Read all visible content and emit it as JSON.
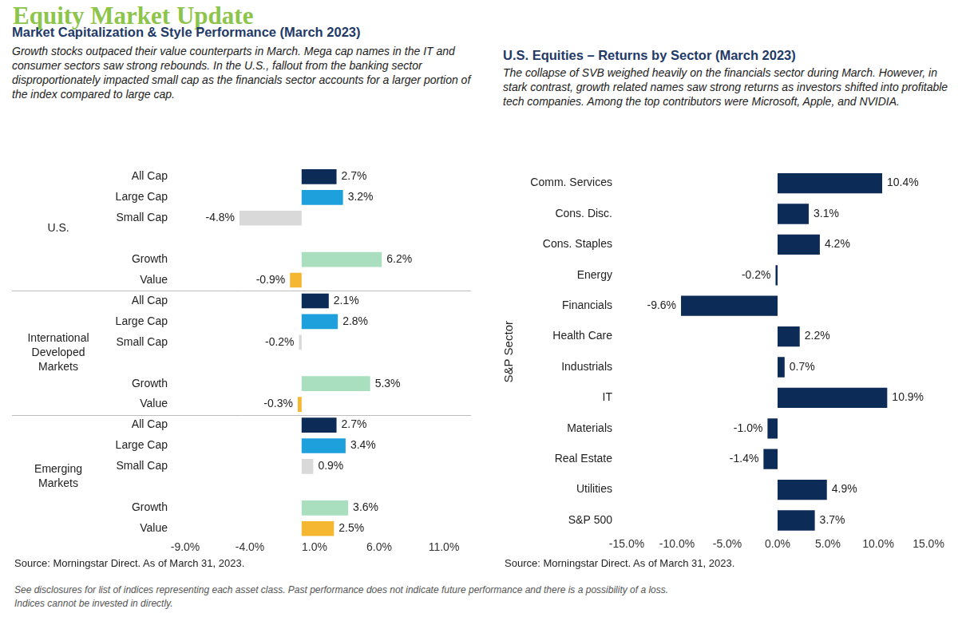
{
  "header": {
    "title": "Equity Market Update"
  },
  "footer": {
    "disclaimer": [
      "See disclosures for list of indices representing each asset class. Past performance does not indicate future performance and there is a possibility of a loss.",
      "Indices cannot be invested in directly."
    ]
  },
  "chart_data": [
    {
      "type": "bar",
      "orientation": "horizontal",
      "title": "Market Capitalization & Style Performance (March 2023)",
      "subtitle": "Growth stocks outpaced their value counterparts in March. Mega cap names in the IT and consumer sectors saw strong rebounds. In the U.S., fallout from the banking sector disproportionately impacted small cap as the financials sector accounts for a larger portion of the index compared to large cap.",
      "source": "Source: Morningstar Direct. As of March 31, 2023.",
      "groups": [
        {
          "name": "U.S.",
          "categories": [
            "All Cap",
            "Large Cap",
            "Small Cap",
            null,
            "Growth",
            "Value"
          ],
          "values": [
            2.7,
            3.2,
            -4.8,
            null,
            6.2,
            -0.9
          ],
          "value_labels": [
            "2.7%",
            "3.2%",
            "-4.8%",
            null,
            "6.2%",
            "-0.9%"
          ],
          "colors": [
            "#0d2b57",
            "#1ea0dc",
            "#d9d9d9",
            null,
            "#a9dfbf",
            "#f5b731"
          ]
        },
        {
          "name": "International Developed Markets",
          "categories": [
            "All Cap",
            "Large Cap",
            "Small Cap",
            null,
            "Growth",
            "Value"
          ],
          "values": [
            2.1,
            2.8,
            -0.2,
            null,
            5.3,
            -0.3
          ],
          "value_labels": [
            "2.1%",
            "2.8%",
            "-0.2%",
            null,
            "5.3%",
            "-0.3%"
          ],
          "colors": [
            "#0d2b57",
            "#1ea0dc",
            "#d9d9d9",
            null,
            "#a9dfbf",
            "#f5b731"
          ]
        },
        {
          "name": "Emerging Markets",
          "categories": [
            "All Cap",
            "Large Cap",
            "Small Cap",
            null,
            "Growth",
            "Value"
          ],
          "values": [
            2.7,
            3.4,
            0.9,
            null,
            3.6,
            2.5
          ],
          "value_labels": [
            "2.7%",
            "3.4%",
            "0.9%",
            null,
            "3.6%",
            "2.5%"
          ],
          "colors": [
            "#0d2b57",
            "#1ea0dc",
            "#d9d9d9",
            null,
            "#a9dfbf",
            "#f5b731"
          ]
        }
      ],
      "xlim": [
        -9,
        11
      ],
      "xticks": [
        {
          "value": -9,
          "label": "-9.0%"
        },
        {
          "value": -4,
          "label": "-4.0%"
        },
        {
          "value": 1,
          "label": "1.0%"
        },
        {
          "value": 6,
          "label": "6.0%"
        },
        {
          "value": 11,
          "label": "11.0%"
        }
      ],
      "grid": false,
      "data_labels": true
    },
    {
      "type": "bar",
      "orientation": "horizontal",
      "title": "U.S. Equities – Returns by Sector (March 2023)",
      "subtitle": "The collapse of SVB weighed heavily on the financials sector during March. However, in stark contrast, growth related names saw strong returns as investors shifted into profitable tech companies. Among the top contributors were Microsoft, Apple, and NVIDIA.",
      "source": "Source: Morningstar Direct. As of March 31, 2023.",
      "y_label": "S&P Sector",
      "categories": [
        "Comm. Services",
        "Cons. Disc.",
        "Cons. Staples",
        "Energy",
        "Financials",
        "Health Care",
        "Industrials",
        "IT",
        "Materials",
        "Real Estate",
        "Utilities",
        "S&P 500"
      ],
      "values": [
        10.4,
        3.1,
        4.2,
        -0.2,
        -9.6,
        2.2,
        0.7,
        10.9,
        -1.0,
        -1.4,
        4.9,
        3.7
      ],
      "value_labels": [
        "10.4%",
        "3.1%",
        "4.2%",
        "-0.2%",
        "-9.6%",
        "2.2%",
        "0.7%",
        "10.9%",
        "-1.0%",
        "-1.4%",
        "4.9%",
        "3.7%"
      ],
      "color": "#0d2b57",
      "xlim": [
        -15,
        15
      ],
      "xticks": [
        {
          "value": -15,
          "label": "-15.0%"
        },
        {
          "value": -10,
          "label": "-10.0%"
        },
        {
          "value": -5,
          "label": "-5.0%"
        },
        {
          "value": 0,
          "label": "0.0%"
        },
        {
          "value": 5,
          "label": "5.0%"
        },
        {
          "value": 10,
          "label": "10.0%"
        },
        {
          "value": 15,
          "label": "15.0%"
        }
      ],
      "grid": false,
      "data_labels": true
    }
  ]
}
